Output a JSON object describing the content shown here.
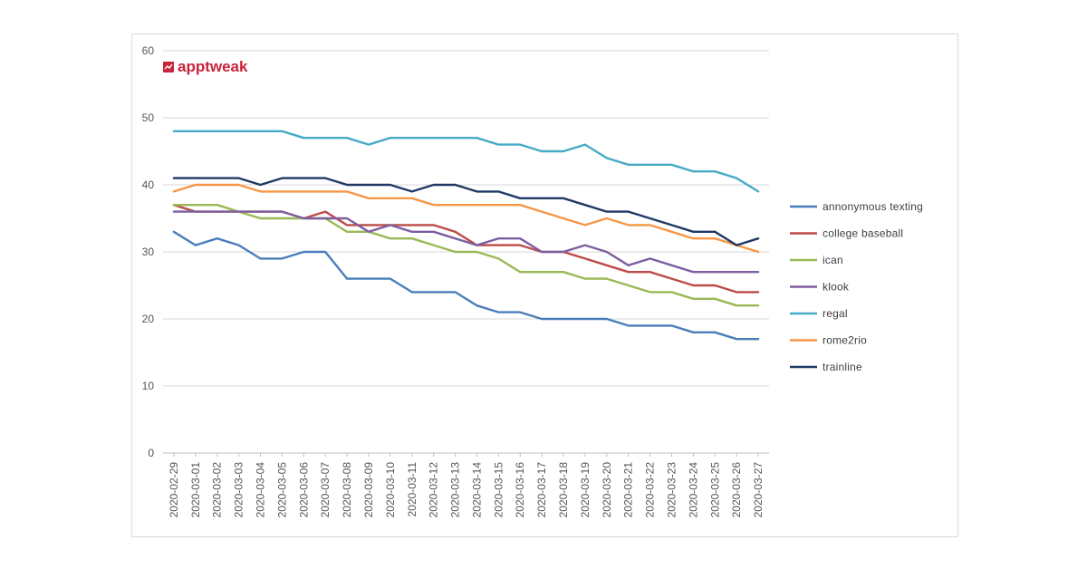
{
  "brand": {
    "name": "apptweak",
    "color": "#c8243c",
    "icon": "chart-box-icon"
  },
  "chart_data": {
    "type": "line",
    "title": "",
    "xlabel": "",
    "ylabel": "",
    "ylim": [
      0,
      60
    ],
    "yticks": [
      0,
      10,
      20,
      30,
      40,
      50,
      60
    ],
    "grid": "horizontal",
    "legend_position": "right",
    "x": [
      "2020-02-29",
      "2020-03-01",
      "2020-03-02",
      "2020-03-03",
      "2020-03-04",
      "2020-03-05",
      "2020-03-06",
      "2020-03-07",
      "2020-03-08",
      "2020-03-09",
      "2020-03-10",
      "2020-03-11",
      "2020-03-12",
      "2020-03-13",
      "2020-03-14",
      "2020-03-15",
      "2020-03-16",
      "2020-03-17",
      "2020-03-18",
      "2020-03-19",
      "2020-03-20",
      "2020-03-21",
      "2020-03-22",
      "2020-03-23",
      "2020-03-24",
      "2020-03-25",
      "2020-03-26",
      "2020-03-27"
    ],
    "series": [
      {
        "name": "annonymous texting",
        "color": "#4a7ebb",
        "values": [
          33,
          31,
          32,
          31,
          29,
          29,
          30,
          30,
          26,
          26,
          26,
          24,
          24,
          24,
          22,
          21,
          21,
          20,
          20,
          20,
          20,
          19,
          19,
          19,
          18,
          18,
          17,
          17
        ]
      },
      {
        "name": "college baseball",
        "color": "#be4b48",
        "values": [
          37,
          36,
          36,
          36,
          36,
          36,
          35,
          36,
          34,
          34,
          34,
          34,
          34,
          33,
          31,
          31,
          31,
          30,
          30,
          29,
          28,
          27,
          27,
          26,
          25,
          25,
          24,
          24
        ]
      },
      {
        "name": "ican",
        "color": "#98b954",
        "values": [
          37,
          37,
          37,
          36,
          35,
          35,
          35,
          35,
          33,
          33,
          32,
          32,
          31,
          30,
          30,
          29,
          27,
          27,
          27,
          26,
          26,
          25,
          24,
          24,
          23,
          23,
          22,
          22
        ]
      },
      {
        "name": "klook",
        "color": "#7d5fa0",
        "values": [
          36,
          36,
          36,
          36,
          36,
          36,
          35,
          35,
          35,
          33,
          34,
          33,
          33,
          32,
          31,
          32,
          32,
          30,
          30,
          31,
          30,
          28,
          29,
          28,
          27,
          27,
          27,
          27
        ]
      },
      {
        "name": "regal",
        "color": "#46aac5",
        "values": [
          48,
          48,
          48,
          48,
          48,
          48,
          47,
          47,
          47,
          46,
          47,
          47,
          47,
          47,
          47,
          46,
          46,
          45,
          45,
          46,
          44,
          43,
          43,
          43,
          42,
          42,
          41,
          39
        ]
      },
      {
        "name": "rome2rio",
        "color": "#f79646",
        "values": [
          39,
          40,
          40,
          40,
          39,
          39,
          39,
          39,
          39,
          38,
          38,
          38,
          37,
          37,
          37,
          37,
          37,
          36,
          35,
          34,
          35,
          34,
          34,
          33,
          32,
          32,
          31,
          30
        ]
      },
      {
        "name": "trainline",
        "color": "#1f3864",
        "values": [
          41,
          41,
          41,
          41,
          40,
          41,
          41,
          41,
          40,
          40,
          40,
          39,
          40,
          40,
          39,
          39,
          38,
          38,
          38,
          37,
          36,
          36,
          35,
          34,
          33,
          33,
          31,
          32
        ]
      }
    ]
  }
}
